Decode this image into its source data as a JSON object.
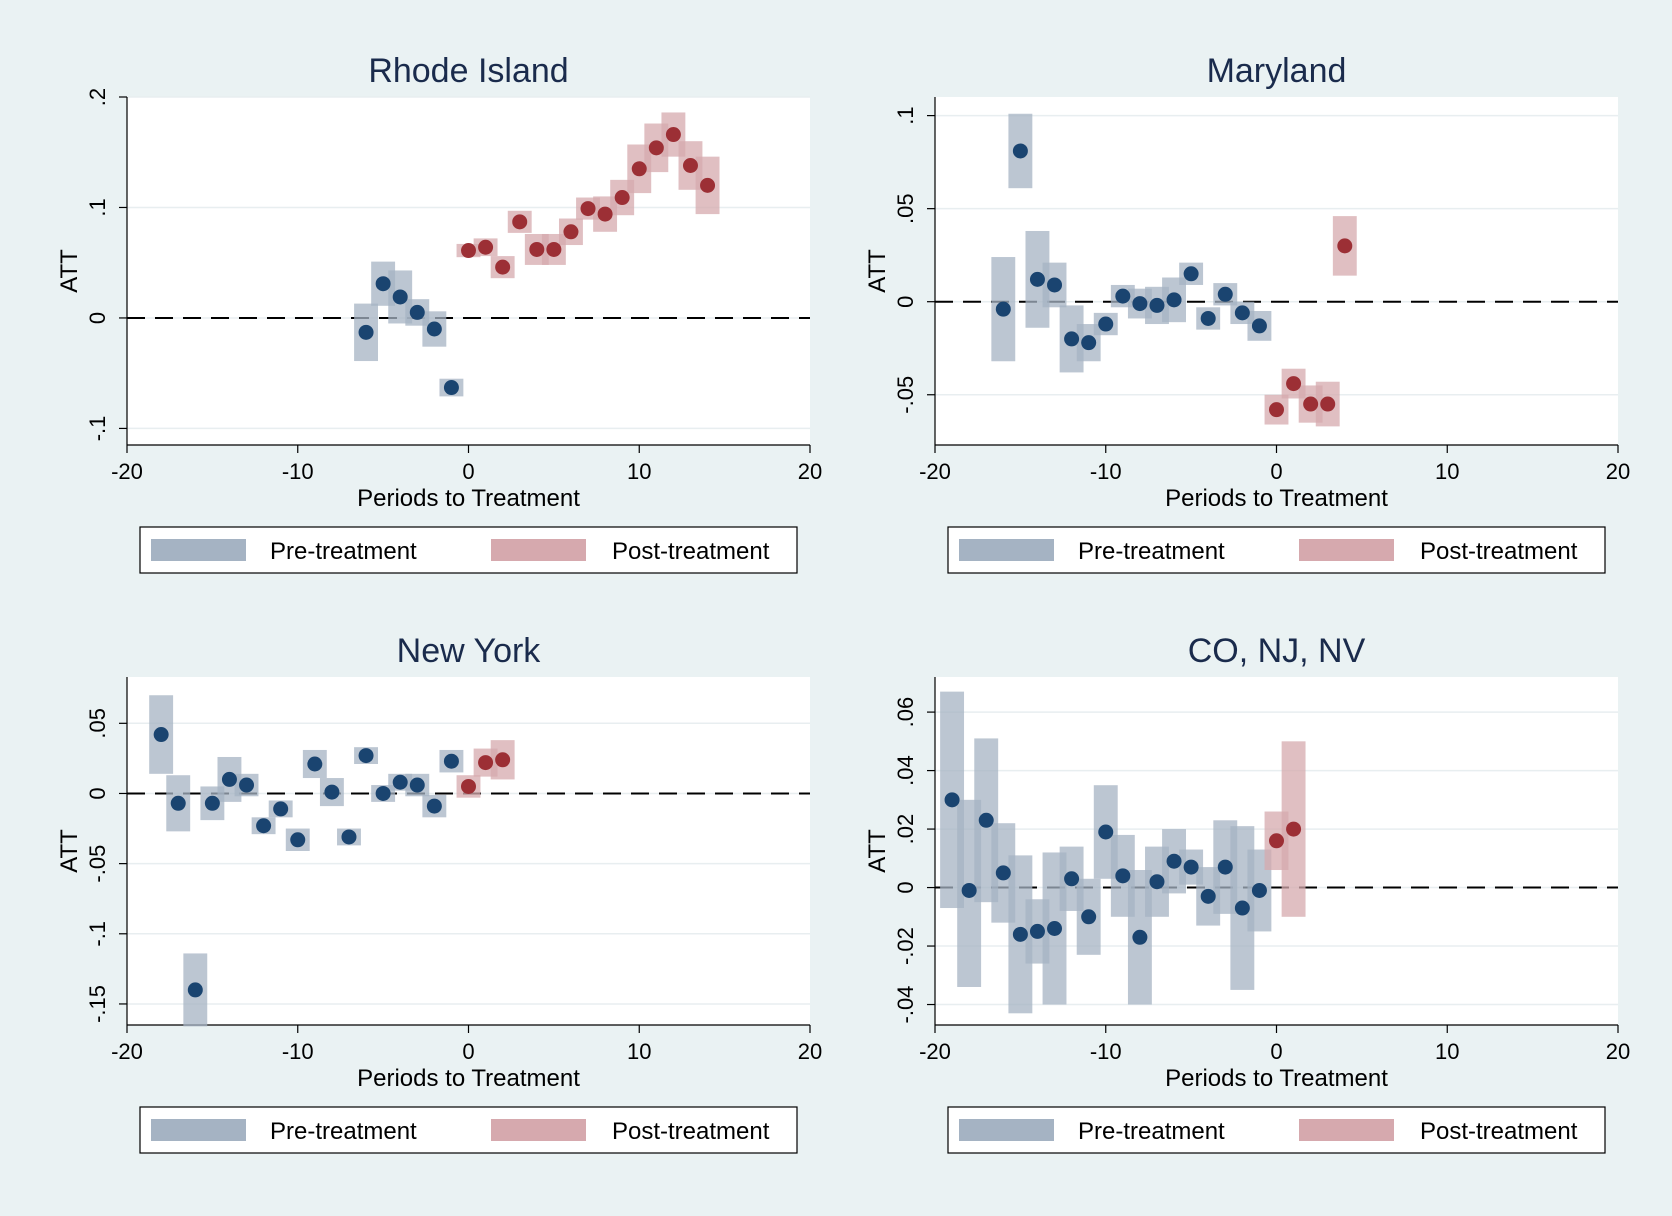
{
  "colors": {
    "pre_ci": "#a5b3c3",
    "pre_point": "#1a4470",
    "post_ci": "#d6a9ae",
    "post_point": "#9c2f35",
    "title": "#1a2b4c",
    "background": "#eaf2f3"
  },
  "chart_data": [
    {
      "type": "scatter",
      "title": "Rhode Island",
      "xlabel": "Periods to Treatment",
      "ylabel": "ATT",
      "xlim": [
        -20,
        20
      ],
      "ylim": [
        -0.115,
        0.2
      ],
      "xticks": [
        -20,
        -10,
        0,
        10,
        20
      ],
      "xtick_labels": [
        "-20",
        "-10",
        "0",
        "10",
        "20"
      ],
      "yticks": [
        -0.1,
        0,
        0.1,
        0.2
      ],
      "ytick_labels": [
        "-.1",
        "0",
        ".1",
        ".2"
      ],
      "grid": true,
      "legend": [
        "Pre-treatment",
        "Post-treatment"
      ],
      "legend_position": "bottom",
      "series": [
        {
          "name": "Pre-treatment",
          "points": [
            {
              "x": -6,
              "y": -0.013,
              "lo": -0.039,
              "hi": 0.013
            },
            {
              "x": -5,
              "y": 0.031,
              "lo": 0.011,
              "hi": 0.051
            },
            {
              "x": -4,
              "y": 0.019,
              "lo": -0.005,
              "hi": 0.043
            },
            {
              "x": -3,
              "y": 0.005,
              "lo": -0.007,
              "hi": 0.017
            },
            {
              "x": -2,
              "y": -0.01,
              "lo": -0.026,
              "hi": 0.006
            },
            {
              "x": -1,
              "y": -0.063,
              "lo": -0.071,
              "hi": -0.055
            }
          ]
        },
        {
          "name": "Post-treatment",
          "points": [
            {
              "x": 0,
              "y": 0.061,
              "lo": 0.055,
              "hi": 0.067
            },
            {
              "x": 1,
              "y": 0.064,
              "lo": 0.056,
              "hi": 0.072
            },
            {
              "x": 2,
              "y": 0.046,
              "lo": 0.036,
              "hi": 0.056
            },
            {
              "x": 3,
              "y": 0.087,
              "lo": 0.077,
              "hi": 0.097
            },
            {
              "x": 4,
              "y": 0.062,
              "lo": 0.048,
              "hi": 0.076
            },
            {
              "x": 5,
              "y": 0.062,
              "lo": 0.048,
              "hi": 0.076
            },
            {
              "x": 6,
              "y": 0.078,
              "lo": 0.066,
              "hi": 0.09
            },
            {
              "x": 7,
              "y": 0.099,
              "lo": 0.089,
              "hi": 0.109
            },
            {
              "x": 8,
              "y": 0.094,
              "lo": 0.078,
              "hi": 0.11
            },
            {
              "x": 9,
              "y": 0.109,
              "lo": 0.093,
              "hi": 0.125
            },
            {
              "x": 10,
              "y": 0.135,
              "lo": 0.113,
              "hi": 0.157
            },
            {
              "x": 11,
              "y": 0.154,
              "lo": 0.132,
              "hi": 0.176
            },
            {
              "x": 12,
              "y": 0.166,
              "lo": 0.146,
              "hi": 0.186
            },
            {
              "x": 13,
              "y": 0.138,
              "lo": 0.116,
              "hi": 0.16
            },
            {
              "x": 14,
              "y": 0.12,
              "lo": 0.094,
              "hi": 0.146
            }
          ]
        }
      ]
    },
    {
      "type": "scatter",
      "title": "Maryland",
      "xlabel": "Periods to Treatment",
      "ylabel": "ATT",
      "xlim": [
        -20,
        20
      ],
      "ylim": [
        -0.077,
        0.11
      ],
      "xticks": [
        -20,
        -10,
        0,
        10,
        20
      ],
      "xtick_labels": [
        "-20",
        "-10",
        "0",
        "10",
        "20"
      ],
      "yticks": [
        -0.05,
        0,
        0.05,
        0.1
      ],
      "ytick_labels": [
        "-.05",
        "0",
        ".05",
        ".1"
      ],
      "grid": true,
      "legend": [
        "Pre-treatment",
        "Post-treatment"
      ],
      "legend_position": "bottom",
      "series": [
        {
          "name": "Pre-treatment",
          "points": [
            {
              "x": -16,
              "y": -0.004,
              "lo": -0.032,
              "hi": 0.024
            },
            {
              "x": -15,
              "y": 0.081,
              "lo": 0.061,
              "hi": 0.101
            },
            {
              "x": -14,
              "y": 0.012,
              "lo": -0.014,
              "hi": 0.038
            },
            {
              "x": -13,
              "y": 0.009,
              "lo": -0.003,
              "hi": 0.021
            },
            {
              "x": -12,
              "y": -0.02,
              "lo": -0.038,
              "hi": -0.002
            },
            {
              "x": -11,
              "y": -0.022,
              "lo": -0.032,
              "hi": -0.012
            },
            {
              "x": -10,
              "y": -0.012,
              "lo": -0.018,
              "hi": -0.006
            },
            {
              "x": -9,
              "y": 0.003,
              "lo": -0.003,
              "hi": 0.009
            },
            {
              "x": -8,
              "y": -0.001,
              "lo": -0.009,
              "hi": 0.007
            },
            {
              "x": -7,
              "y": -0.002,
              "lo": -0.012,
              "hi": 0.008
            },
            {
              "x": -6,
              "y": 0.001,
              "lo": -0.011,
              "hi": 0.013
            },
            {
              "x": -5,
              "y": 0.015,
              "lo": 0.009,
              "hi": 0.021
            },
            {
              "x": -4,
              "y": -0.009,
              "lo": -0.015,
              "hi": -0.003
            },
            {
              "x": -3,
              "y": 0.004,
              "lo": -0.002,
              "hi": 0.01
            },
            {
              "x": -2,
              "y": -0.006,
              "lo": -0.012,
              "hi": 0.0
            },
            {
              "x": -1,
              "y": -0.013,
              "lo": -0.021,
              "hi": -0.005
            }
          ]
        },
        {
          "name": "Post-treatment",
          "points": [
            {
              "x": 0,
              "y": -0.058,
              "lo": -0.066,
              "hi": -0.05
            },
            {
              "x": 1,
              "y": -0.044,
              "lo": -0.052,
              "hi": -0.036
            },
            {
              "x": 2,
              "y": -0.055,
              "lo": -0.065,
              "hi": -0.045
            },
            {
              "x": 3,
              "y": -0.055,
              "lo": -0.067,
              "hi": -0.043
            },
            {
              "x": 4,
              "y": 0.03,
              "lo": 0.014,
              "hi": 0.046
            }
          ]
        }
      ]
    },
    {
      "type": "scatter",
      "title": "New York",
      "xlabel": "Periods to Treatment",
      "ylabel": "ATT",
      "xlim": [
        -20,
        20
      ],
      "ylim": [
        -0.165,
        0.083
      ],
      "xticks": [
        -20,
        -10,
        0,
        10,
        20
      ],
      "xtick_labels": [
        "-20",
        "-10",
        "0",
        "10",
        "20"
      ],
      "yticks": [
        -0.15,
        -0.1,
        -0.05,
        0,
        0.05
      ],
      "ytick_labels": [
        "-.15",
        "-.1",
        "-.05",
        "0",
        ".05"
      ],
      "grid": true,
      "legend": [
        "Pre-treatment",
        "Post-treatment"
      ],
      "legend_position": "bottom",
      "series": [
        {
          "name": "Pre-treatment",
          "points": [
            {
              "x": -18,
              "y": 0.042,
              "lo": 0.014,
              "hi": 0.07
            },
            {
              "x": -17,
              "y": -0.007,
              "lo": -0.027,
              "hi": 0.013
            },
            {
              "x": -16,
              "y": -0.14,
              "lo": -0.166,
              "hi": -0.114
            },
            {
              "x": -15,
              "y": -0.007,
              "lo": -0.019,
              "hi": 0.005
            },
            {
              "x": -14,
              "y": 0.01,
              "lo": -0.006,
              "hi": 0.026
            },
            {
              "x": -13,
              "y": 0.006,
              "lo": -0.002,
              "hi": 0.014
            },
            {
              "x": -12,
              "y": -0.023,
              "lo": -0.029,
              "hi": -0.017
            },
            {
              "x": -11,
              "y": -0.011,
              "lo": -0.017,
              "hi": -0.005
            },
            {
              "x": -10,
              "y": -0.033,
              "lo": -0.041,
              "hi": -0.025
            },
            {
              "x": -9,
              "y": 0.021,
              "lo": 0.011,
              "hi": 0.031
            },
            {
              "x": -8,
              "y": 0.001,
              "lo": -0.009,
              "hi": 0.011
            },
            {
              "x": -7,
              "y": -0.031,
              "lo": -0.037,
              "hi": -0.025
            },
            {
              "x": -6,
              "y": 0.027,
              "lo": 0.021,
              "hi": 0.033
            },
            {
              "x": -5,
              "y": 0.0,
              "lo": -0.006,
              "hi": 0.006
            },
            {
              "x": -4,
              "y": 0.008,
              "lo": 0.002,
              "hi": 0.014
            },
            {
              "x": -3,
              "y": 0.006,
              "lo": -0.002,
              "hi": 0.014
            },
            {
              "x": -2,
              "y": -0.009,
              "lo": -0.017,
              "hi": -0.001
            },
            {
              "x": -1,
              "y": 0.023,
              "lo": 0.015,
              "hi": 0.031
            }
          ]
        },
        {
          "name": "Post-treatment",
          "points": [
            {
              "x": 0,
              "y": 0.005,
              "lo": -0.003,
              "hi": 0.013
            },
            {
              "x": 1,
              "y": 0.022,
              "lo": 0.012,
              "hi": 0.032
            },
            {
              "x": 2,
              "y": 0.024,
              "lo": 0.01,
              "hi": 0.038
            }
          ]
        }
      ]
    },
    {
      "type": "scatter",
      "title": "CO, NJ, NV",
      "xlabel": "Periods to Treatment",
      "ylabel": "ATT",
      "xlim": [
        -20,
        20
      ],
      "ylim": [
        -0.047,
        0.072
      ],
      "xticks": [
        -20,
        -10,
        0,
        10,
        20
      ],
      "xtick_labels": [
        "-20",
        "-10",
        "0",
        "10",
        "20"
      ],
      "yticks": [
        -0.04,
        -0.02,
        0,
        0.02,
        0.04,
        0.06
      ],
      "ytick_labels": [
        "-.04",
        "-.02",
        "0",
        ".02",
        ".04",
        ".06"
      ],
      "grid": true,
      "legend": [
        "Pre-treatment",
        "Post-treatment"
      ],
      "legend_position": "bottom",
      "series": [
        {
          "name": "Pre-treatment",
          "points": [
            {
              "x": -19,
              "y": 0.03,
              "lo": -0.007,
              "hi": 0.067
            },
            {
              "x": -18,
              "y": -0.001,
              "lo": -0.034,
              "hi": 0.03
            },
            {
              "x": -17,
              "y": 0.023,
              "lo": -0.005,
              "hi": 0.051
            },
            {
              "x": -16,
              "y": 0.005,
              "lo": -0.012,
              "hi": 0.022
            },
            {
              "x": -15,
              "y": -0.016,
              "lo": -0.043,
              "hi": 0.011
            },
            {
              "x": -14,
              "y": -0.015,
              "lo": -0.026,
              "hi": -0.004
            },
            {
              "x": -13,
              "y": -0.014,
              "lo": -0.04,
              "hi": 0.012
            },
            {
              "x": -12,
              "y": 0.003,
              "lo": -0.008,
              "hi": 0.014
            },
            {
              "x": -11,
              "y": -0.01,
              "lo": -0.023,
              "hi": 0.003
            },
            {
              "x": -10,
              "y": 0.019,
              "lo": 0.003,
              "hi": 0.035
            },
            {
              "x": -9,
              "y": 0.004,
              "lo": -0.01,
              "hi": 0.018
            },
            {
              "x": -8,
              "y": -0.017,
              "lo": -0.04,
              "hi": 0.006
            },
            {
              "x": -7,
              "y": 0.002,
              "lo": -0.01,
              "hi": 0.014
            },
            {
              "x": -6,
              "y": 0.009,
              "lo": -0.002,
              "hi": 0.02
            },
            {
              "x": -5,
              "y": 0.007,
              "lo": 0.001,
              "hi": 0.013
            },
            {
              "x": -4,
              "y": -0.003,
              "lo": -0.013,
              "hi": 0.007
            },
            {
              "x": -3,
              "y": 0.007,
              "lo": -0.009,
              "hi": 0.023
            },
            {
              "x": -2,
              "y": -0.007,
              "lo": -0.035,
              "hi": 0.021
            },
            {
              "x": -1,
              "y": -0.001,
              "lo": -0.015,
              "hi": 0.013
            }
          ]
        },
        {
          "name": "Post-treatment",
          "points": [
            {
              "x": 0,
              "y": 0.016,
              "lo": 0.006,
              "hi": 0.026
            },
            {
              "x": 1,
              "y": 0.02,
              "lo": -0.01,
              "hi": 0.05
            }
          ]
        }
      ]
    }
  ]
}
